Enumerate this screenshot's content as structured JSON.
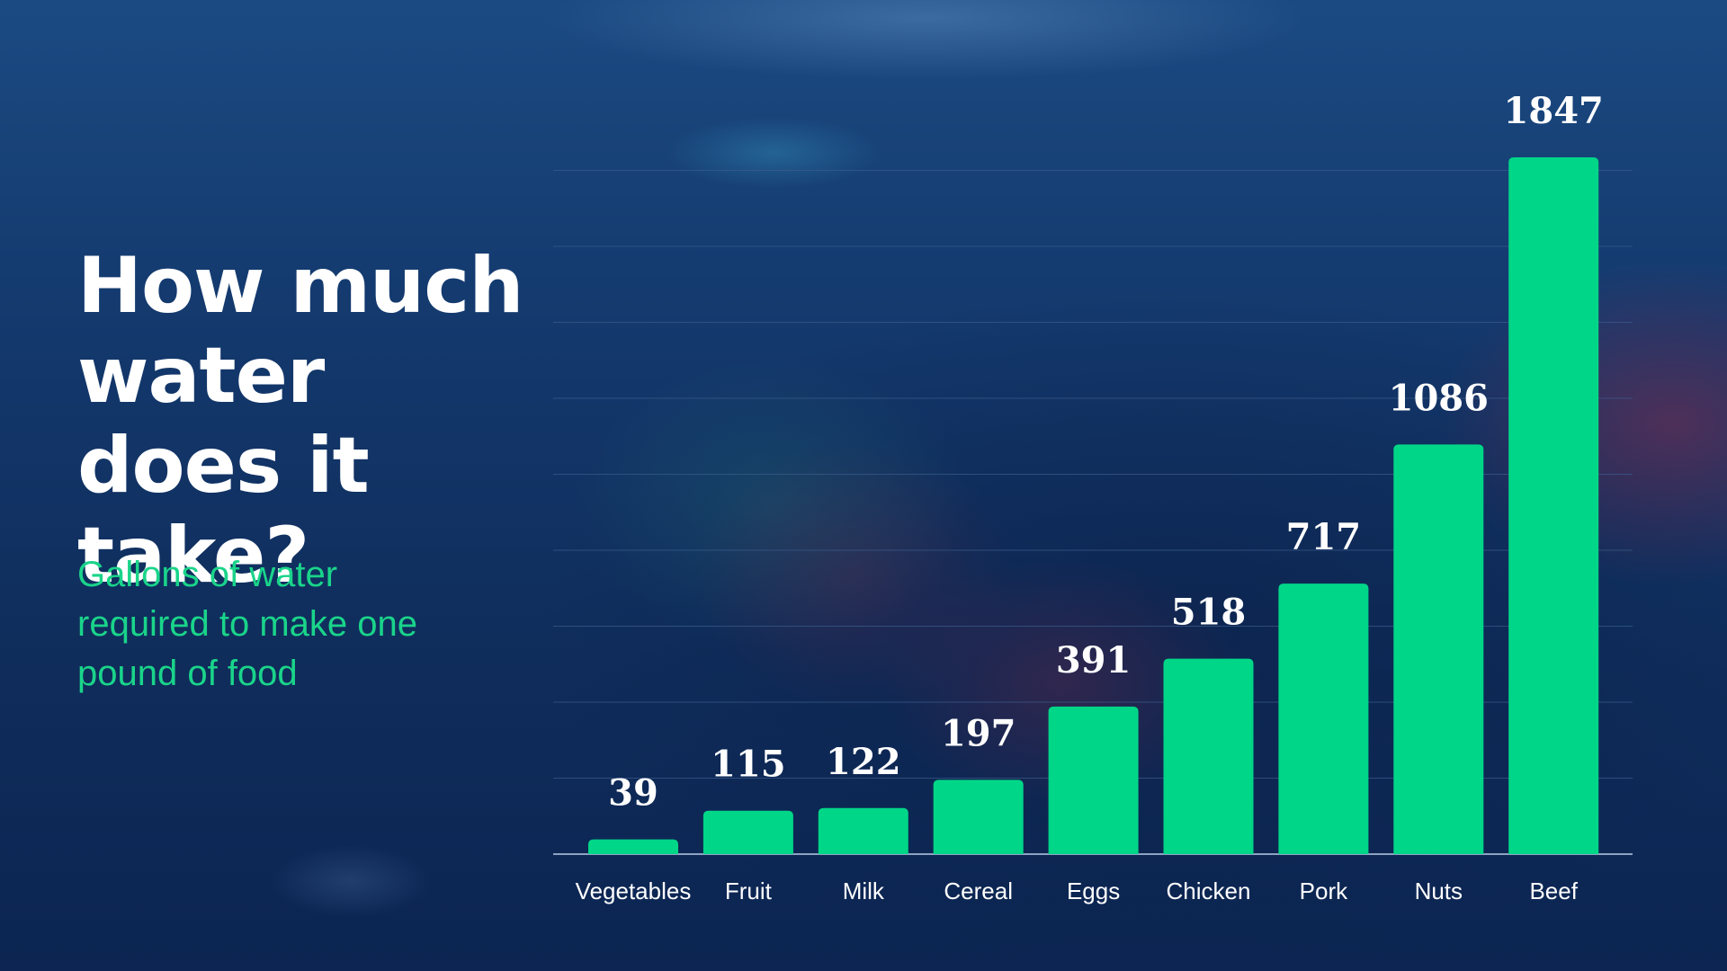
{
  "title": "How much water does it take?",
  "subtitle": "Gallons of water required to make one pound of food",
  "colors": {
    "bar": "#00d688",
    "subtitle": "#1ad48a",
    "text": "#ffffff",
    "gridline": "#3b5d8c",
    "axis": "#8ea2c2"
  },
  "chart_data": {
    "type": "bar",
    "title": "How much water does it take?",
    "subtitle": "Gallons of water required to make one pound of food",
    "categories": [
      "Vegetables",
      "Fruit",
      "Milk",
      "Cereal",
      "Eggs",
      "Chicken",
      "Pork",
      "Nuts",
      "Beef"
    ],
    "values": [
      39,
      115,
      122,
      197,
      391,
      518,
      717,
      1086,
      1847
    ],
    "ylim": [
      0,
      1847
    ],
    "grid": true,
    "data_labels": true,
    "legend": "none"
  }
}
